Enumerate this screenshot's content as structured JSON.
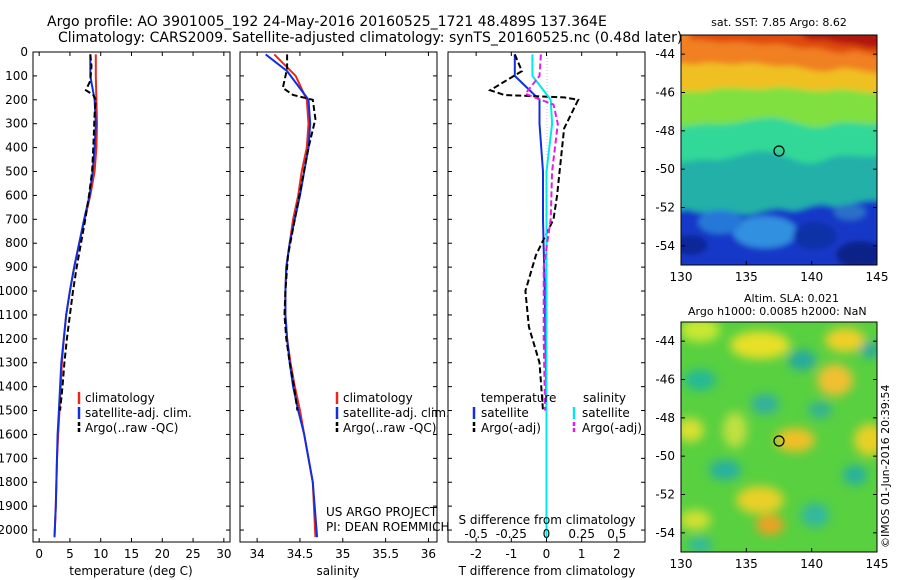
{
  "header": {
    "line1": "Argo profile: AO 3901005_192 24-May-2016 20160525_1721 48.489S 137.364E",
    "line2": "Climatology: CARS2009. Satellite-adjusted climatology: synTS_20160525.nc (0.48d later)"
  },
  "colors": {
    "climatology": "#e8291c",
    "satellite": "#1030e0",
    "argo": "#000000",
    "satellite_salinity": "#00e8e8",
    "argo_salinity": "#e020e0"
  },
  "chart_data": [
    {
      "type": "line",
      "id": "temperature-panel",
      "xlabel": "temperature (deg C)",
      "xlim": [
        -1,
        31
      ],
      "ylim": [
        2050,
        0
      ],
      "xticks": [
        "0",
        "5",
        "10",
        "15",
        "20",
        "25",
        "30"
      ],
      "yticks": [
        "0",
        "100",
        "200",
        "300",
        "400",
        "500",
        "600",
        "700",
        "800",
        "900",
        "1000",
        "1100",
        "1200",
        "1300",
        "1400",
        "1500",
        "1600",
        "1700",
        "1800",
        "1900",
        "2000"
      ],
      "legend": [
        "climatology",
        "satellite-adj. clim.",
        "Argo(..raw -QC)"
      ],
      "series": [
        {
          "name": "climatology",
          "x": [
            9.2,
            9.2,
            9.3,
            9.4,
            9.3,
            9.0,
            8.3,
            7.4,
            6.5,
            5.7,
            5.0,
            4.4,
            4.0,
            3.7,
            3.5,
            3.3,
            3.1,
            2.9,
            2.8,
            2.7,
            2.5
          ],
          "y": [
            10,
            100,
            200,
            300,
            400,
            500,
            600,
            700,
            800,
            900,
            1000,
            1100,
            1200,
            1300,
            1400,
            1500,
            1600,
            1700,
            1800,
            1900,
            2030
          ]
        },
        {
          "name": "satellite-adj. clim.",
          "x": [
            8.3,
            8.3,
            9.0,
            9.2,
            9.0,
            8.7,
            8.2,
            7.3,
            6.5,
            5.7,
            5.0,
            4.4,
            4.0,
            3.6,
            3.4,
            3.2,
            3.0,
            2.9,
            2.8,
            2.7,
            2.5
          ],
          "y": [
            10,
            100,
            200,
            300,
            400,
            500,
            600,
            700,
            800,
            900,
            1000,
            1100,
            1200,
            1300,
            1400,
            1500,
            1600,
            1700,
            1800,
            1900,
            2030
          ]
        },
        {
          "name": "Argo(..raw -QC)",
          "x": [
            8.3,
            8.5,
            8.3,
            7.6,
            8.8,
            9.2,
            9.0,
            8.8,
            8.6,
            8.1,
            7.5,
            6.8,
            6.1,
            5.5,
            5.0,
            4.5,
            4.1,
            3.8,
            3.6,
            3.4
          ],
          "y": [
            10,
            60,
            120,
            160,
            180,
            200,
            260,
            400,
            500,
            600,
            700,
            800,
            900,
            1000,
            1100,
            1200,
            1300,
            1400,
            1450,
            1500
          ]
        }
      ]
    },
    {
      "type": "line",
      "id": "salinity-panel",
      "xlabel": "salinity",
      "xlim": [
        33.8,
        36.1
      ],
      "ylim": [
        2050,
        0
      ],
      "xticks": [
        "34",
        "34.5",
        "35",
        "35.5",
        "36"
      ],
      "legend": [
        "climatology",
        "satellite-adj. clim.",
        "Argo(..raw -QC)"
      ],
      "annotation": [
        "US ARGO PROJECT",
        "PI: DEAN ROEMMICH"
      ],
      "series": [
        {
          "name": "climatology",
          "x": [
            34.2,
            34.45,
            34.58,
            34.6,
            34.58,
            34.52,
            34.48,
            34.42,
            34.38,
            34.34,
            34.33,
            34.33,
            34.35,
            34.39,
            34.44,
            34.5,
            34.55,
            34.6,
            34.65,
            34.68
          ],
          "y": [
            10,
            100,
            200,
            300,
            400,
            500,
            600,
            700,
            800,
            900,
            1000,
            1100,
            1200,
            1300,
            1400,
            1500,
            1600,
            1700,
            1800,
            2030
          ]
        },
        {
          "name": "satellite-adj. clim.",
          "x": [
            34.1,
            34.35,
            34.6,
            34.62,
            34.6,
            34.55,
            34.5,
            34.44,
            34.38,
            34.34,
            34.33,
            34.33,
            34.35,
            34.38,
            34.42,
            34.48,
            34.55,
            34.6,
            34.65,
            34.7
          ],
          "y": [
            10,
            80,
            200,
            300,
            400,
            500,
            600,
            700,
            800,
            900,
            1000,
            1100,
            1200,
            1300,
            1400,
            1500,
            1600,
            1700,
            1800,
            2030
          ]
        },
        {
          "name": "Argo(..raw -QC)",
          "x": [
            34.35,
            34.35,
            34.3,
            34.42,
            34.65,
            34.68,
            34.6,
            34.52,
            34.44,
            34.36,
            34.33,
            34.32,
            34.34,
            34.38,
            34.43,
            34.47
          ],
          "y": [
            10,
            70,
            150,
            180,
            200,
            280,
            400,
            550,
            700,
            850,
            1000,
            1100,
            1200,
            1300,
            1400,
            1500
          ]
        }
      ]
    },
    {
      "type": "line",
      "id": "difference-panel",
      "xlabel": "T difference from climatology",
      "xlabel_top": "S difference from climatology",
      "xlim": [
        -2.8,
        2.8
      ],
      "xlim_top": [
        -0.7,
        0.7
      ],
      "ylim": [
        2050,
        0
      ],
      "xticks": [
        "-2",
        "-1",
        "0",
        "1",
        "2"
      ],
      "xticks_top": [
        "-0.5",
        "-0.25",
        "0",
        "0.25",
        "0.5"
      ],
      "legend_left_title": "temperature",
      "legend_left": [
        "satellite",
        "Argo(-adj)"
      ],
      "legend_right_title": "salinity",
      "legend_right": [
        "satellite",
        "Argo(-adj)"
      ],
      "series": [
        {
          "name": "temperature satellite",
          "x": [
            -0.9,
            -0.9,
            -0.2,
            -0.2,
            -0.1,
            -0.1,
            -0.05,
            0,
            0
          ],
          "y": [
            10,
            100,
            200,
            300,
            500,
            700,
            1000,
            1500,
            2030
          ]
        },
        {
          "name": "temperature Argo(-adj)",
          "x": [
            -0.9,
            -0.7,
            -1.6,
            -1.2,
            0.5,
            0.9,
            0.5,
            0.3,
            0.2,
            -0.3,
            -0.6,
            -0.5,
            -0.2,
            -0.1
          ],
          "y": [
            10,
            80,
            160,
            180,
            190,
            200,
            320,
            600,
            700,
            850,
            1000,
            1150,
            1300,
            1500
          ]
        },
        {
          "name": "salinity satellite",
          "x": [
            -0.1,
            -0.1,
            0.03,
            0.04,
            0.0,
            0.0,
            0.0,
            0.0
          ],
          "y": [
            10,
            100,
            200,
            300,
            500,
            800,
            1500,
            2030
          ]
        },
        {
          "name": "salinity Argo(-adj)",
          "x": [
            -0.04,
            -0.05,
            -0.15,
            0.05,
            0.08,
            0.04,
            0.03,
            -0.02,
            -0.02,
            -0.01
          ],
          "y": [
            10,
            100,
            175,
            220,
            300,
            500,
            700,
            900,
            1200,
            1500
          ]
        }
      ]
    },
    {
      "type": "heatmap",
      "id": "sst-map",
      "title": "sat. SST: 7.85 Argo: 8.62",
      "xlim": [
        130,
        145
      ],
      "ylim": [
        -55,
        -43
      ],
      "xticks": [
        "130",
        "135",
        "140",
        "145"
      ],
      "yticks": [
        "-44",
        "-46",
        "-48",
        "-50",
        "-52",
        "-54"
      ],
      "argo_position": [
        137.364,
        -48.489
      ]
    },
    {
      "type": "heatmap",
      "id": "sla-map",
      "title_line1": "Altim. SLA: 0.021",
      "title_line2": "Argo h1000: 0.0085 h2000: NaN",
      "xlim": [
        130,
        145
      ],
      "ylim": [
        -55,
        -43
      ],
      "xticks": [
        "130",
        "135",
        "140",
        "145"
      ],
      "yticks": [
        "-44",
        "-46",
        "-48",
        "-50",
        "-52",
        "-54"
      ],
      "argo_position": [
        137.364,
        -48.489
      ],
      "credit": "©IMOS 01-Jun-2016 20:39:54"
    }
  ]
}
